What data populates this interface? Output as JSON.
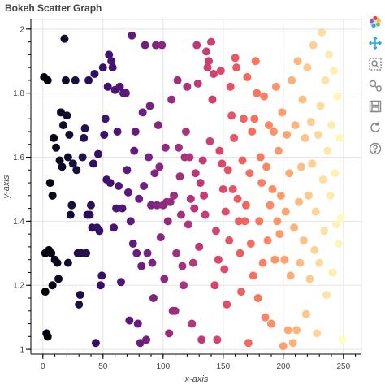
{
  "chart_data": {
    "type": "scatter",
    "title": "Bokeh Scatter Graph",
    "xlabel": "x-axis",
    "ylabel": "y-axis",
    "xlim": [
      -10,
      265
    ],
    "ylim": [
      0.985,
      2.03
    ],
    "x_ticks": [
      0,
      50,
      100,
      150,
      200,
      250
    ],
    "x_tick_labels": [
      "0",
      "50",
      "100",
      "150",
      "200",
      "250"
    ],
    "y_ticks": [
      1,
      1.2,
      1.4,
      1.6,
      1.8,
      2
    ],
    "y_tick_labels": [
      "1",
      "1.2",
      "1.4",
      "1.6",
      "1.8",
      "2"
    ],
    "grid": true,
    "legend": "none",
    "colormap": "magma",
    "colormap_stops": [
      "#000004",
      "#180f3e",
      "#3b0f70",
      "#641a80",
      "#8c2981",
      "#b5367a",
      "#de4968",
      "#f7705c",
      "#fe9f6d",
      "#fecf92",
      "#fcfdbf"
    ],
    "points": [
      {
        "x": 1,
        "y": 1.85
      },
      {
        "x": 4,
        "y": 1.84
      },
      {
        "x": 2,
        "y": 1.3
      },
      {
        "x": 5,
        "y": 1.31
      },
      {
        "x": 7,
        "y": 1.3
      },
      {
        "x": 8,
        "y": 1.2
      },
      {
        "x": 2,
        "y": 1.18
      },
      {
        "x": 3,
        "y": 1.05
      },
      {
        "x": 4,
        "y": 1.04
      },
      {
        "x": 6,
        "y": 1.52
      },
      {
        "x": 8,
        "y": 1.48
      },
      {
        "x": 9,
        "y": 1.66
      },
      {
        "x": 11,
        "y": 1.63
      },
      {
        "x": 10,
        "y": 1.28
      },
      {
        "x": 12,
        "y": 1.27
      },
      {
        "x": 13,
        "y": 1.22
      },
      {
        "x": 14,
        "y": 1.59
      },
      {
        "x": 15,
        "y": 1.74
      },
      {
        "x": 16,
        "y": 1.57
      },
      {
        "x": 17,
        "y": 1.7
      },
      {
        "x": 18,
        "y": 1.97
      },
      {
        "x": 19,
        "y": 1.84
      },
      {
        "x": 20,
        "y": 1.73
      },
      {
        "x": 21,
        "y": 1.27
      },
      {
        "x": 21,
        "y": 1.6
      },
      {
        "x": 22,
        "y": 1.67
      },
      {
        "x": 23,
        "y": 1.42
      },
      {
        "x": 24,
        "y": 1.45
      },
      {
        "x": 25,
        "y": 1.58
      },
      {
        "x": 27,
        "y": 1.84
      },
      {
        "x": 28,
        "y": 1.56
      },
      {
        "x": 29,
        "y": 1.3
      },
      {
        "x": 30,
        "y": 1.14
      },
      {
        "x": 31,
        "y": 1.17
      },
      {
        "x": 32,
        "y": 1.3
      },
      {
        "x": 33,
        "y": 1.6
      },
      {
        "x": 34,
        "y": 1.66
      },
      {
        "x": 35,
        "y": 1.69
      },
      {
        "x": 36,
        "y": 1.3
      },
      {
        "x": 37,
        "y": 1.42
      },
      {
        "x": 38,
        "y": 1.84
      },
      {
        "x": 39,
        "y": 1.42
      },
      {
        "x": 40,
        "y": 1.45
      },
      {
        "x": 41,
        "y": 1.38
      },
      {
        "x": 42,
        "y": 1.58
      },
      {
        "x": 43,
        "y": 1.86
      },
      {
        "x": 44,
        "y": 1.02
      },
      {
        "x": 45,
        "y": 1.38
      },
      {
        "x": 46,
        "y": 1.61
      },
      {
        "x": 47,
        "y": 1.37
      },
      {
        "x": 48,
        "y": 1.2
      },
      {
        "x": 49,
        "y": 1.23
      },
      {
        "x": 50,
        "y": 1.88
      },
      {
        "x": 51,
        "y": 1.67
      },
      {
        "x": 52,
        "y": 1.72
      },
      {
        "x": 53,
        "y": 1.53
      },
      {
        "x": 54,
        "y": 1.82
      },
      {
        "x": 55,
        "y": 1.92
      },
      {
        "x": 56,
        "y": 1.52
      },
      {
        "x": 57,
        "y": 1.9
      },
      {
        "x": 58,
        "y": 1.88
      },
      {
        "x": 59,
        "y": 1.38
      },
      {
        "x": 60,
        "y": 1.81
      },
      {
        "x": 61,
        "y": 1.44
      },
      {
        "x": 62,
        "y": 1.68
      },
      {
        "x": 63,
        "y": 1.51
      },
      {
        "x": 64,
        "y": 1.82
      },
      {
        "x": 65,
        "y": 1.21
      },
      {
        "x": 66,
        "y": 1.44
      },
      {
        "x": 67,
        "y": 1.8
      },
      {
        "x": 68,
        "y": 1.8
      },
      {
        "x": 69,
        "y": 1.8
      },
      {
        "x": 70,
        "y": 1.56
      },
      {
        "x": 71,
        "y": 1.49
      },
      {
        "x": 72,
        "y": 1.09
      },
      {
        "x": 73,
        "y": 1.4
      },
      {
        "x": 74,
        "y": 1.98
      },
      {
        "x": 75,
        "y": 1.33
      },
      {
        "x": 76,
        "y": 1.62
      },
      {
        "x": 77,
        "y": 1.68
      },
      {
        "x": 78,
        "y": 1.3
      },
      {
        "x": 79,
        "y": 1.08
      },
      {
        "x": 80,
        "y": 1.47
      },
      {
        "x": 81,
        "y": 1.02
      },
      {
        "x": 82,
        "y": 1.26
      },
      {
        "x": 83,
        "y": 1.74
      },
      {
        "x": 84,
        "y": 1.51
      },
      {
        "x": 85,
        "y": 1.95
      },
      {
        "x": 86,
        "y": 1.03
      },
      {
        "x": 87,
        "y": 1.3
      },
      {
        "x": 88,
        "y": 1.6
      },
      {
        "x": 89,
        "y": 1.76
      },
      {
        "x": 90,
        "y": 1.45
      },
      {
        "x": 91,
        "y": 1.27
      },
      {
        "x": 92,
        "y": 1.16
      },
      {
        "x": 93,
        "y": 1.55
      },
      {
        "x": 94,
        "y": 1.95
      },
      {
        "x": 95,
        "y": 1.45
      },
      {
        "x": 96,
        "y": 1.7
      },
      {
        "x": 97,
        "y": 1.57
      },
      {
        "x": 98,
        "y": 1.35
      },
      {
        "x": 99,
        "y": 1.95
      },
      {
        "x": 100,
        "y": 1.45
      },
      {
        "x": 101,
        "y": 1.22
      },
      {
        "x": 102,
        "y": 1.63
      },
      {
        "x": 103,
        "y": 1.46
      },
      {
        "x": 104,
        "y": 1.4
      },
      {
        "x": 105,
        "y": 1.05
      },
      {
        "x": 106,
        "y": 1.46
      },
      {
        "x": 107,
        "y": 1.78
      },
      {
        "x": 108,
        "y": 1.12
      },
      {
        "x": 109,
        "y": 1.48
      },
      {
        "x": 110,
        "y": 1.12
      },
      {
        "x": 111,
        "y": 1.3
      },
      {
        "x": 112,
        "y": 1.84
      },
      {
        "x": 113,
        "y": 1.63
      },
      {
        "x": 114,
        "y": 1.54
      },
      {
        "x": 115,
        "y": 1.42
      },
      {
        "x": 116,
        "y": 1.26
      },
      {
        "x": 117,
        "y": 1.2
      },
      {
        "x": 118,
        "y": 1.6
      },
      {
        "x": 119,
        "y": 1.68
      },
      {
        "x": 120,
        "y": 1.82
      },
      {
        "x": 121,
        "y": 1.39
      },
      {
        "x": 122,
        "y": 1.6
      },
      {
        "x": 123,
        "y": 1.47
      },
      {
        "x": 124,
        "y": 1.08
      },
      {
        "x": 125,
        "y": 1.27
      },
      {
        "x": 126,
        "y": 1.44
      },
      {
        "x": 127,
        "y": 1.55
      },
      {
        "x": 128,
        "y": 1.95
      },
      {
        "x": 129,
        "y": 1.83
      },
      {
        "x": 130,
        "y": 1.32
      },
      {
        "x": 131,
        "y": 1.52
      },
      {
        "x": 132,
        "y": 1.03
      },
      {
        "x": 133,
        "y": 1.59
      },
      {
        "x": 134,
        "y": 1.48
      },
      {
        "x": 135,
        "y": 1.42
      },
      {
        "x": 136,
        "y": 1.93
      },
      {
        "x": 137,
        "y": 1.88
      },
      {
        "x": 138,
        "y": 1.9
      },
      {
        "x": 139,
        "y": 1.65
      },
      {
        "x": 140,
        "y": 1.96
      },
      {
        "x": 141,
        "y": 1.78
      },
      {
        "x": 142,
        "y": 1.86
      },
      {
        "x": 143,
        "y": 1.2
      },
      {
        "x": 144,
        "y": 1.37
      },
      {
        "x": 145,
        "y": 1.03
      },
      {
        "x": 146,
        "y": 1.28
      },
      {
        "x": 147,
        "y": 1.62
      },
      {
        "x": 148,
        "y": 1.87
      },
      {
        "x": 149,
        "y": 1.58
      },
      {
        "x": 150,
        "y": 1.5
      },
      {
        "x": 151,
        "y": 1.25
      },
      {
        "x": 152,
        "y": 1.43
      },
      {
        "x": 153,
        "y": 1.14
      },
      {
        "x": 154,
        "y": 1.56
      },
      {
        "x": 155,
        "y": 1.34
      },
      {
        "x": 156,
        "y": 1.82
      },
      {
        "x": 157,
        "y": 1.73
      },
      {
        "x": 158,
        "y": 1.5
      },
      {
        "x": 159,
        "y": 1.66
      },
      {
        "x": 160,
        "y": 1.91
      },
      {
        "x": 161,
        "y": 1.88
      },
      {
        "x": 162,
        "y": 1.47
      },
      {
        "x": 163,
        "y": 1.4
      },
      {
        "x": 164,
        "y": 1.3
      },
      {
        "x": 165,
        "y": 1.18
      },
      {
        "x": 166,
        "y": 1.59
      },
      {
        "x": 167,
        "y": 1.72
      },
      {
        "x": 168,
        "y": 1.4
      },
      {
        "x": 169,
        "y": 1.45
      },
      {
        "x": 170,
        "y": 1.85
      },
      {
        "x": 171,
        "y": 1.02
      },
      {
        "x": 172,
        "y": 1.55
      },
      {
        "x": 173,
        "y": 1.33
      },
      {
        "x": 174,
        "y": 1.68
      },
      {
        "x": 175,
        "y": 1.23
      },
      {
        "x": 176,
        "y": 1.72
      },
      {
        "x": 177,
        "y": 1.9
      },
      {
        "x": 178,
        "y": 1.8
      },
      {
        "x": 179,
        "y": 1.16
      },
      {
        "x": 180,
        "y": 1.4
      },
      {
        "x": 181,
        "y": 1.6
      },
      {
        "x": 182,
        "y": 1.52
      },
      {
        "x": 183,
        "y": 1.27
      },
      {
        "x": 184,
        "y": 1.79
      },
      {
        "x": 185,
        "y": 1.1
      },
      {
        "x": 186,
        "y": 1.57
      },
      {
        "x": 187,
        "y": 1.34
      },
      {
        "x": 188,
        "y": 1.7
      },
      {
        "x": 189,
        "y": 1.45
      },
      {
        "x": 190,
        "y": 1.08
      },
      {
        "x": 191,
        "y": 1.5
      },
      {
        "x": 192,
        "y": 1.68
      },
      {
        "x": 193,
        "y": 1.28
      },
      {
        "x": 194,
        "y": 1.82
      },
      {
        "x": 195,
        "y": 1.4
      },
      {
        "x": 196,
        "y": 1.62
      },
      {
        "x": 197,
        "y": 1.36
      },
      {
        "x": 198,
        "y": 1.48
      },
      {
        "x": 199,
        "y": 1.74
      },
      {
        "x": 200,
        "y": 1.01
      },
      {
        "x": 201,
        "y": 1.28
      },
      {
        "x": 202,
        "y": 1.43
      },
      {
        "x": 203,
        "y": 1.67
      },
      {
        "x": 204,
        "y": 1.06
      },
      {
        "x": 205,
        "y": 1.55
      },
      {
        "x": 206,
        "y": 1.23
      },
      {
        "x": 207,
        "y": 1.84
      },
      {
        "x": 208,
        "y": 1.02
      },
      {
        "x": 209,
        "y": 1.38
      },
      {
        "x": 210,
        "y": 1.7
      },
      {
        "x": 211,
        "y": 1.06
      },
      {
        "x": 212,
        "y": 1.9
      },
      {
        "x": 213,
        "y": 1.46
      },
      {
        "x": 214,
        "y": 1.27
      },
      {
        "x": 215,
        "y": 1.57
      },
      {
        "x": 216,
        "y": 1.78
      },
      {
        "x": 217,
        "y": 1.34
      },
      {
        "x": 218,
        "y": 1.66
      },
      {
        "x": 219,
        "y": 1.11
      },
      {
        "x": 220,
        "y": 1.88
      },
      {
        "x": 221,
        "y": 1.48
      },
      {
        "x": 222,
        "y": 1.22
      },
      {
        "x": 223,
        "y": 1.71
      },
      {
        "x": 224,
        "y": 1.58
      },
      {
        "x": 225,
        "y": 1.95
      },
      {
        "x": 226,
        "y": 1.31
      },
      {
        "x": 227,
        "y": 1.43
      },
      {
        "x": 228,
        "y": 1.05
      },
      {
        "x": 229,
        "y": 1.67
      },
      {
        "x": 230,
        "y": 1.27
      },
      {
        "x": 231,
        "y": 1.76
      },
      {
        "x": 232,
        "y": 1.99
      },
      {
        "x": 233,
        "y": 1.53
      },
      {
        "x": 234,
        "y": 1.37
      },
      {
        "x": 235,
        "y": 1.84
      },
      {
        "x": 236,
        "y": 1.17
      },
      {
        "x": 237,
        "y": 1.62
      },
      {
        "x": 238,
        "y": 1.92
      },
      {
        "x": 239,
        "y": 1.48
      },
      {
        "x": 240,
        "y": 1.7
      },
      {
        "x": 241,
        "y": 1.24
      },
      {
        "x": 242,
        "y": 1.87
      },
      {
        "x": 243,
        "y": 1.55
      },
      {
        "x": 244,
        "y": 1.39
      },
      {
        "x": 245,
        "y": 1.79
      },
      {
        "x": 246,
        "y": 1.33
      },
      {
        "x": 247,
        "y": 1.66
      },
      {
        "x": 248,
        "y": 1.41
      },
      {
        "x": 249,
        "y": 1.03
      }
    ]
  },
  "toolbar": {
    "tools": [
      {
        "name": "bokeh-logo-icon",
        "interactable": true
      },
      {
        "name": "pan-tool-icon",
        "interactable": true
      },
      {
        "name": "box-zoom-tool-icon",
        "interactable": true
      },
      {
        "name": "wheel-zoom-tool-icon",
        "interactable": true
      },
      {
        "name": "save-tool-icon",
        "interactable": true
      },
      {
        "name": "reset-tool-icon",
        "interactable": true
      },
      {
        "name": "help-tool-icon",
        "interactable": true
      }
    ],
    "active_color": "#26aae1",
    "icon_color": "#888888"
  }
}
